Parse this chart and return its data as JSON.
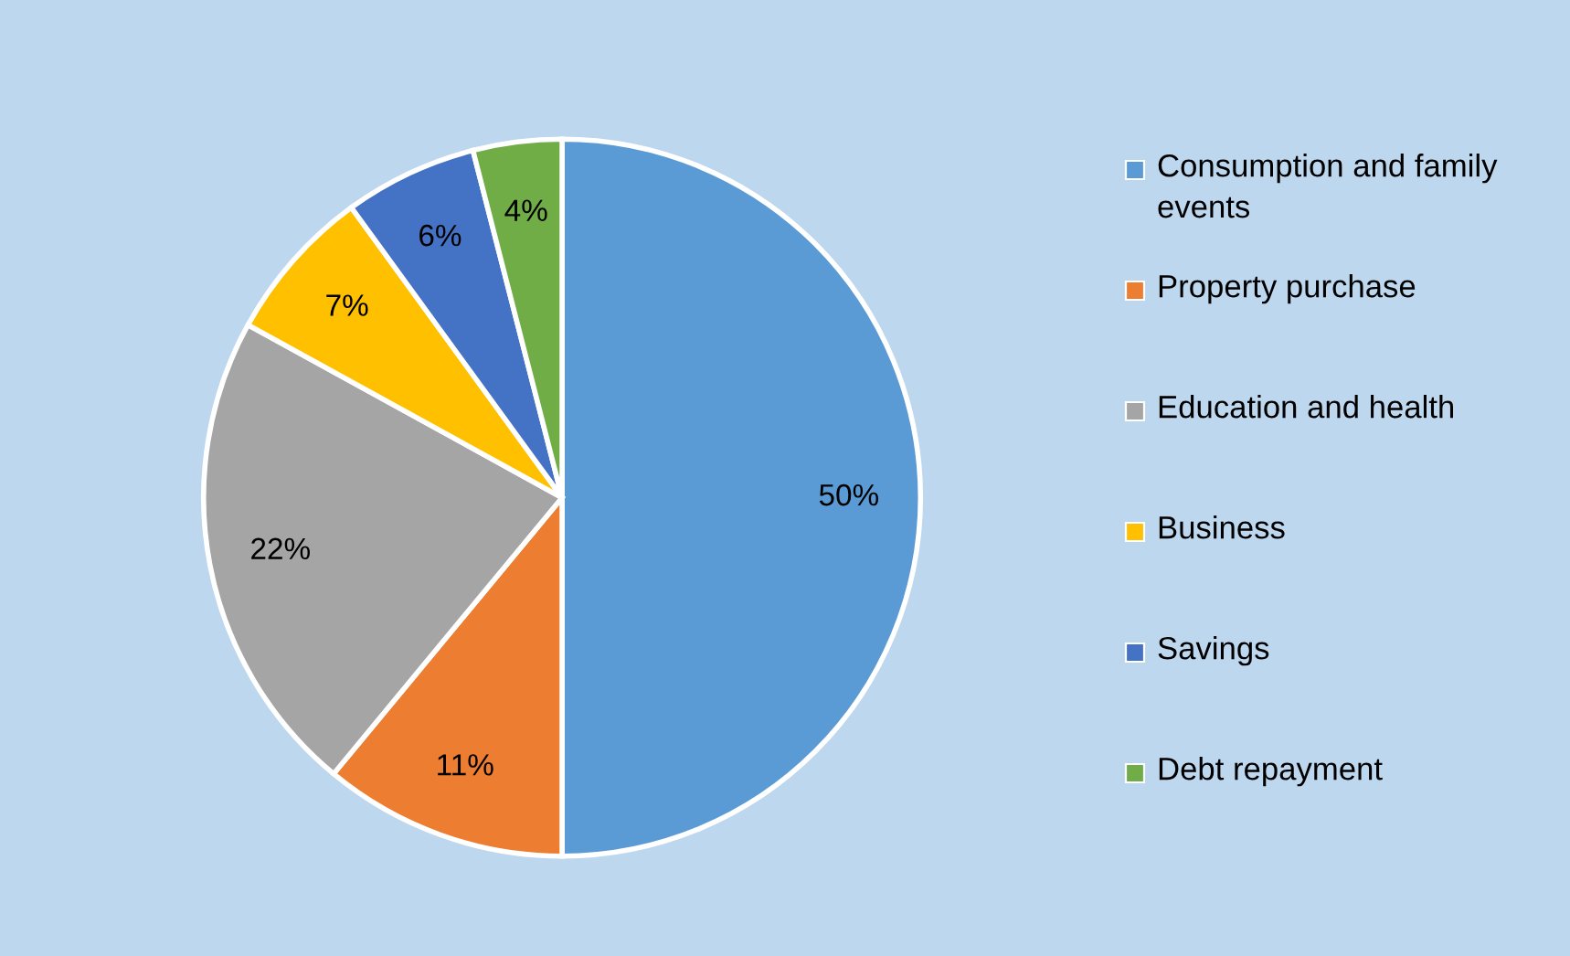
{
  "chart_data": {
    "type": "pie",
    "categories": [
      "Consumption and family events",
      "Property purchase",
      "Education and health",
      "Business",
      "Savings",
      "Debt repayment"
    ],
    "values": [
      50,
      11,
      22,
      7,
      6,
      4
    ],
    "colors": [
      "#5b9bd5",
      "#ed7d31",
      "#a5a5a5",
      "#ffc000",
      "#4472c4",
      "#70ad47"
    ],
    "value_labels": [
      "50%",
      "11%",
      "22%",
      "7%",
      "6%",
      "4%"
    ],
    "legend": "right"
  }
}
